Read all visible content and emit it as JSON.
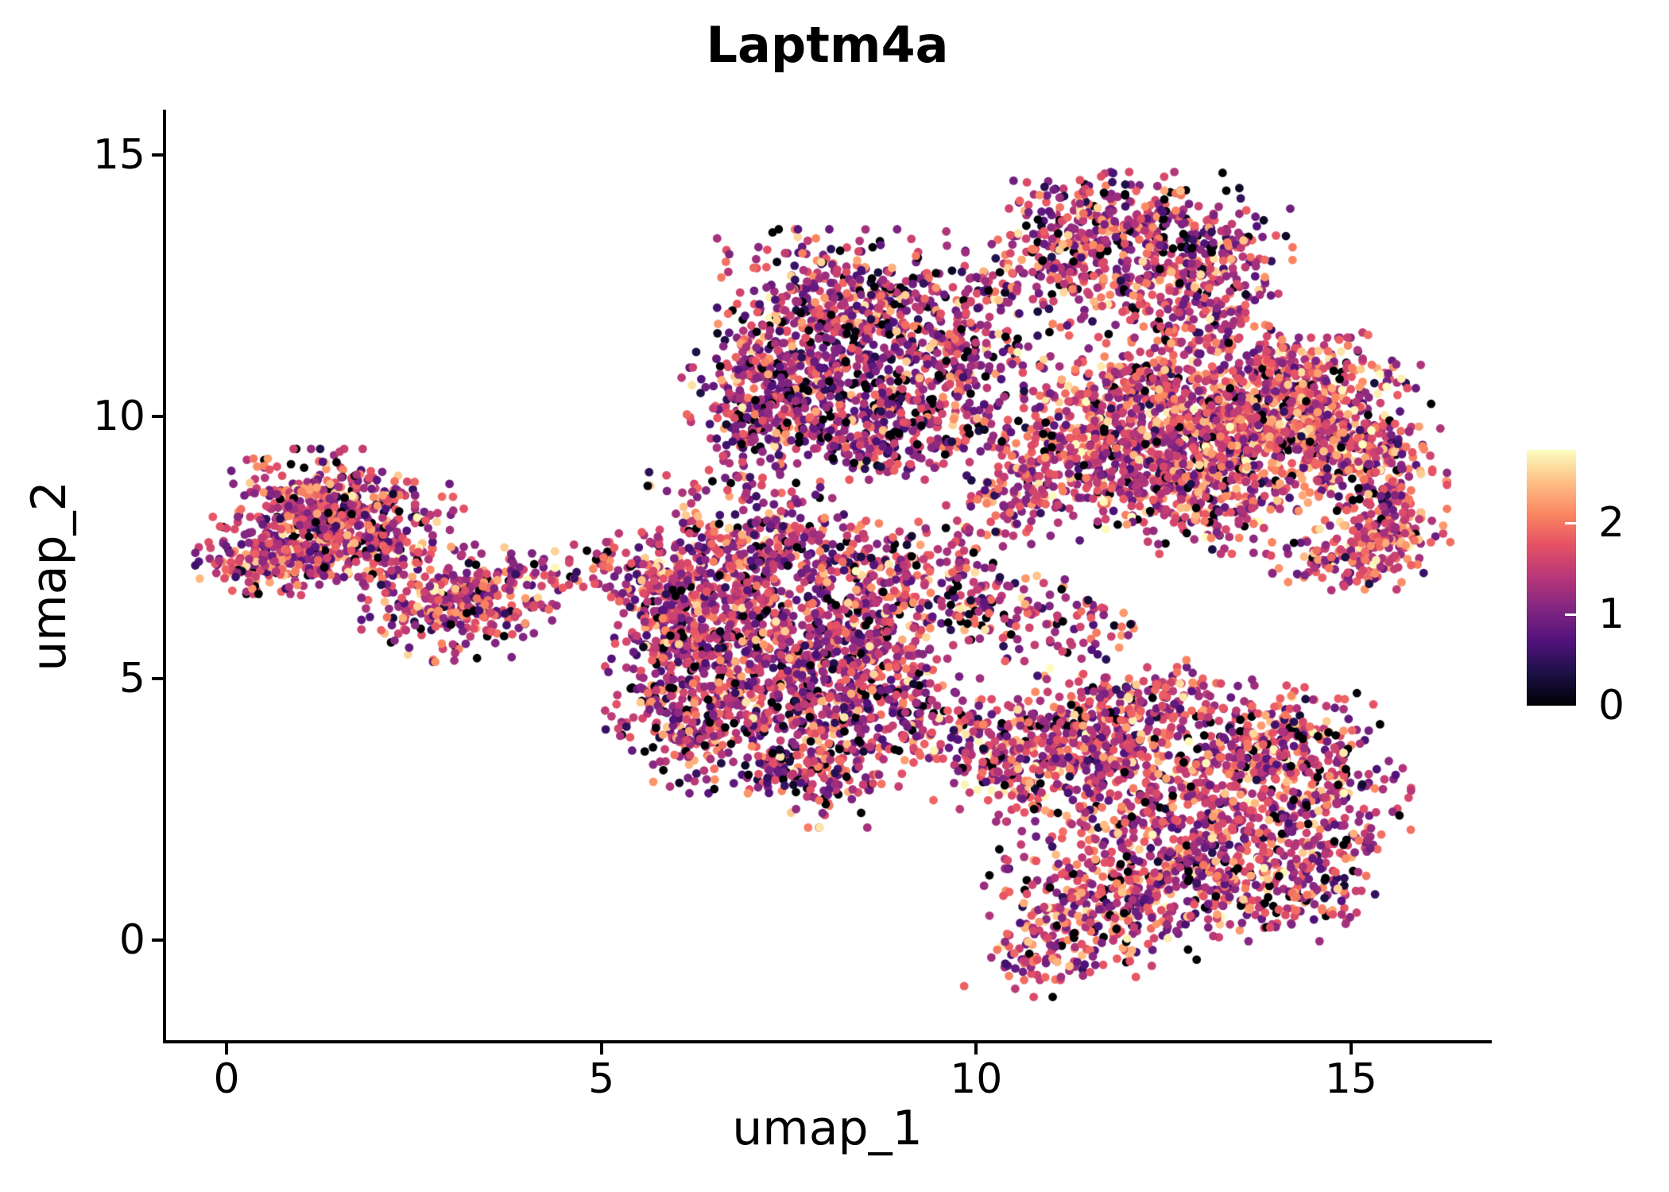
{
  "chart_data": {
    "type": "scatter",
    "title": "Laptm4a",
    "xlabel": "umap_1",
    "ylabel": "umap_2",
    "x_ticks": [
      0,
      5,
      10,
      15
    ],
    "y_ticks": [
      0,
      5,
      10,
      15
    ],
    "x_range": [
      -0.85,
      16.86
    ],
    "y_range": [
      -1.94,
      15.83
    ],
    "grid": false,
    "point_radius_px": 5.4,
    "seed": 7,
    "colorbar": {
      "ticks": [
        0,
        1,
        2
      ],
      "vmax": 2.8,
      "colormap": "magma",
      "stops": [
        [
          0.0,
          "#000004"
        ],
        [
          0.13,
          "#1D1147"
        ],
        [
          0.25,
          "#51127C"
        ],
        [
          0.38,
          "#822681"
        ],
        [
          0.5,
          "#B63679"
        ],
        [
          0.63,
          "#E65164"
        ],
        [
          0.75,
          "#FB8861"
        ],
        [
          0.88,
          "#FEC287"
        ],
        [
          1.0,
          "#FCFDBF"
        ]
      ]
    },
    "value_model": {
      "sd": 0.55,
      "high_tail_p": 0.025,
      "high_tail_min": 2.15,
      "high_tail_span": 0.65,
      "clamp": [
        0.05,
        2.8
      ]
    },
    "clusters": [
      {
        "name": "left-island",
        "mu": 1.5,
        "zero": 0.07,
        "blobs": [
          [
            1.25,
            8.35,
            0.55,
            0.45,
            300
          ],
          [
            0.55,
            7.35,
            0.42,
            0.32,
            190
          ],
          [
            1.9,
            7.95,
            0.55,
            0.4,
            170
          ],
          [
            2.95,
            6.35,
            0.5,
            0.45,
            260
          ],
          [
            3.6,
            6.75,
            0.45,
            0.35,
            90
          ],
          [
            1.6,
            7.3,
            0.5,
            0.35,
            120
          ],
          [
            4.25,
            6.9,
            0.28,
            0.25,
            22
          ]
        ]
      },
      {
        "name": "center-left-mass",
        "mu": 1.4,
        "zero": 0.09,
        "blobs": [
          [
            6.6,
            6.55,
            0.55,
            0.6,
            350
          ],
          [
            7.4,
            5.0,
            0.8,
            0.8,
            520
          ],
          [
            6.2,
            4.3,
            0.5,
            0.65,
            240
          ],
          [
            8.3,
            5.8,
            0.65,
            0.65,
            280
          ],
          [
            7.9,
            3.3,
            0.55,
            0.5,
            200
          ],
          [
            7.15,
            7.6,
            0.6,
            0.42,
            210
          ],
          [
            8.65,
            7.15,
            0.5,
            0.4,
            150
          ],
          [
            5.7,
            6.9,
            0.33,
            0.45,
            85
          ],
          [
            8.9,
            4.4,
            0.5,
            0.5,
            140
          ],
          [
            5.9,
            5.6,
            0.35,
            0.5,
            110
          ],
          [
            5.05,
            7.0,
            0.22,
            0.3,
            26
          ]
        ]
      },
      {
        "name": "top-middle-mass",
        "mu": 1.3,
        "zero": 0.12,
        "blobs": [
          [
            8.2,
            12.2,
            0.72,
            0.6,
            400
          ],
          [
            7.45,
            10.65,
            0.6,
            0.6,
            320
          ],
          [
            9.0,
            10.35,
            0.75,
            0.6,
            330
          ],
          [
            9.75,
            11.5,
            0.5,
            0.55,
            170
          ],
          [
            8.5,
            9.6,
            0.7,
            0.35,
            170
          ],
          [
            7.0,
            9.9,
            0.35,
            0.4,
            80
          ]
        ]
      },
      {
        "name": "top-right-lobe",
        "mu": 1.45,
        "zero": 0.09,
        "blobs": [
          [
            11.9,
            13.8,
            0.7,
            0.38,
            250
          ],
          [
            11.3,
            12.7,
            0.5,
            0.5,
            160
          ],
          [
            12.65,
            12.6,
            0.6,
            0.5,
            200
          ],
          [
            13.3,
            13.25,
            0.4,
            0.4,
            90
          ],
          [
            12.9,
            11.7,
            0.45,
            0.35,
            90
          ]
        ]
      },
      {
        "name": "right-mass",
        "mu": 1.6,
        "zero": 0.06,
        "blobs": [
          [
            13.6,
            9.9,
            0.9,
            0.7,
            780
          ],
          [
            14.9,
            9.3,
            0.6,
            0.6,
            340
          ],
          [
            12.4,
            9.2,
            0.7,
            0.6,
            340
          ],
          [
            11.3,
            9.6,
            0.55,
            0.5,
            210
          ],
          [
            14.55,
            10.85,
            0.6,
            0.33,
            150
          ],
          [
            15.45,
            7.85,
            0.38,
            0.5,
            150
          ],
          [
            14.85,
            7.3,
            0.5,
            0.33,
            110
          ],
          [
            10.6,
            8.6,
            0.45,
            0.45,
            120
          ],
          [
            12.0,
            10.6,
            0.5,
            0.4,
            150
          ],
          [
            13.0,
            8.3,
            0.6,
            0.4,
            170
          ]
        ]
      },
      {
        "name": "bottom-right-mass",
        "mu": 1.5,
        "zero": 0.08,
        "blobs": [
          [
            12.6,
            2.6,
            1.0,
            1.0,
            620
          ],
          [
            13.9,
            3.6,
            0.65,
            0.55,
            280
          ],
          [
            11.3,
            3.9,
            0.55,
            0.5,
            250
          ],
          [
            11.6,
            0.6,
            0.65,
            0.6,
            250
          ],
          [
            13.3,
            1.3,
            0.7,
            0.55,
            250
          ],
          [
            10.35,
            3.3,
            0.4,
            0.45,
            120
          ],
          [
            14.65,
            2.6,
            0.5,
            0.6,
            170
          ],
          [
            10.9,
            -0.35,
            0.5,
            0.32,
            80
          ],
          [
            12.3,
            4.6,
            0.6,
            0.33,
            120
          ],
          [
            14.4,
            0.9,
            0.4,
            0.4,
            90
          ]
        ]
      },
      {
        "name": "sparse-bridges",
        "mu": 1.4,
        "zero": 0.1,
        "blobs": [
          [
            9.75,
            6.9,
            0.5,
            0.55,
            90
          ],
          [
            10.55,
            6.25,
            0.5,
            0.4,
            70
          ],
          [
            11.4,
            6.0,
            0.4,
            0.35,
            45
          ],
          [
            9.8,
            3.9,
            0.33,
            0.4,
            55
          ],
          [
            7.0,
            8.65,
            0.4,
            0.25,
            40
          ],
          [
            10.3,
            12.9,
            0.3,
            0.4,
            40
          ],
          [
            5.75,
            8.6,
            0.15,
            0.15,
            6
          ]
        ]
      }
    ]
  }
}
